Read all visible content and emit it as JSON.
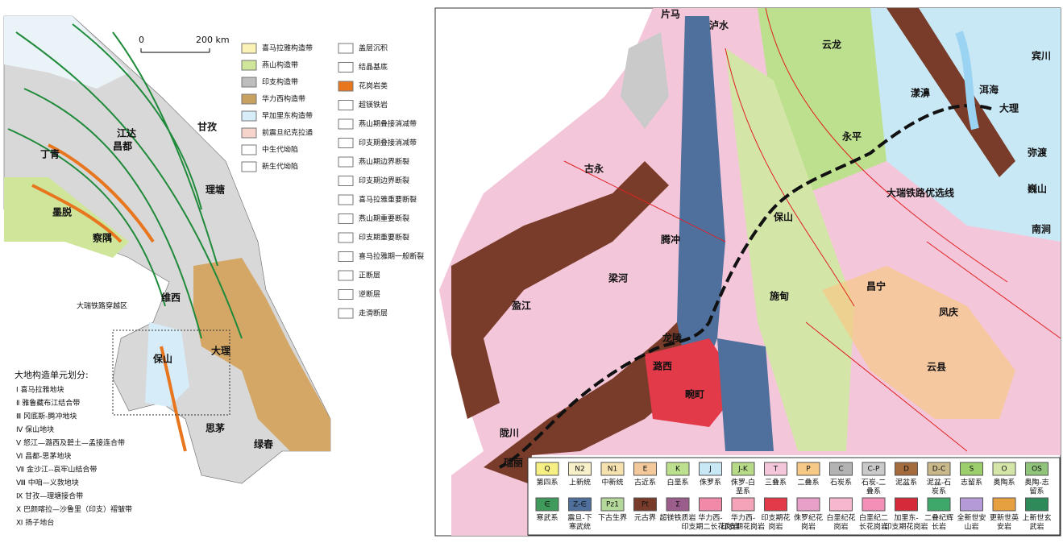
{
  "scale": {
    "zero": "0",
    "label": "200 km"
  },
  "left_legend": {
    "belts": [
      {
        "label": "喜马拉雅构造带",
        "color": "#fbf3b5"
      },
      {
        "label": "燕山构造带",
        "color": "#cfe59a"
      },
      {
        "label": "印支构造带",
        "color": "#bdbdbd"
      },
      {
        "label": "华力西构造带",
        "color": "#c8a060"
      },
      {
        "label": "早加里东构造带",
        "color": "#d6ecf8"
      },
      {
        "label": "前震旦纪克拉通",
        "color": "#f6d4cc"
      },
      {
        "label": "中生代坳陷",
        "color": "#ffffff"
      },
      {
        "label": "新生代坳陷",
        "color": "#ffffff"
      }
    ],
    "symbols": [
      "盖层沉积",
      "结晶基底",
      "花岗岩类",
      "超镁铁岩",
      "燕山期叠接消减带",
      "印支期叠接消减带",
      "燕山期边界断裂",
      "印支期边界断裂",
      "喜马拉雅重要断裂",
      "燕山期重要断裂",
      "印支期重要断裂",
      "喜马拉雅期一般断裂",
      "正断层",
      "逆断层",
      "走滑断层"
    ]
  },
  "units": {
    "title": "大地构造单元划分:",
    "items": [
      "Ⅰ 喜马拉雅地块",
      "Ⅱ 雅鲁藏布江结合带",
      "Ⅲ 冈底斯-腾冲地块",
      "Ⅳ 保山地块",
      "Ⅴ 怒江—潞西及碧土—孟接连合带",
      "Ⅵ 昌都-思茅地块",
      "Ⅶ 金沙江--哀牢山结合带",
      "Ⅷ 中咱—义敦地块",
      "Ⅸ 甘孜—理塘接合带",
      "Ⅹ 巴颜喀拉—沙鲁里（印支）褶皱带",
      "Ⅺ 扬子地台"
    ]
  },
  "left_places": [
    "丁青",
    "江达",
    "昌都",
    "甘孜",
    "理塘",
    "墨脱",
    "察隅",
    "维西",
    "保山",
    "大理",
    "思茅",
    "绿春",
    "大瑞铁路穿越区"
  ],
  "right_places": [
    "片马",
    "泸水",
    "云龙",
    "漾濞",
    "大理",
    "宾川",
    "弥渡",
    "巍山",
    "南涧",
    "永平",
    "保山",
    "腾冲",
    "梁河",
    "盈江",
    "龙陵",
    "潞西",
    "畹町",
    "陇川",
    "瑞丽",
    "施甸",
    "昌宁",
    "凤庆",
    "云县",
    "古永",
    "洱海",
    "大瑞铁路优选线"
  ],
  "bottom_legend": [
    {
      "code": "Q",
      "label": "第四系",
      "color": "#f6ef84"
    },
    {
      "code": "N2",
      "label": "上新统",
      "color": "#f8f0c8"
    },
    {
      "code": "N1",
      "label": "中新统",
      "color": "#f6e2ae"
    },
    {
      "code": "E",
      "label": "古近系",
      "color": "#f3c99c"
    },
    {
      "code": "K",
      "label": "白垩系",
      "color": "#bde08e"
    },
    {
      "code": "J",
      "label": "侏罗系",
      "color": "#c8e8f6"
    },
    {
      "code": "J-K",
      "label": "侏罗-白垩系",
      "color": "#b6da88"
    },
    {
      "code": "T",
      "label": "三叠系",
      "color": "#f4c6da"
    },
    {
      "code": "P",
      "label": "二叠系",
      "color": "#f7c987"
    },
    {
      "code": "C",
      "label": "石炭系",
      "color": "#b3b3b3"
    },
    {
      "code": "C-P",
      "label": "石炭-二叠系",
      "color": "#cacaca"
    },
    {
      "code": "D",
      "label": "泥盆系",
      "color": "#a46c3d"
    },
    {
      "code": "D-C",
      "label": "泥盆-石炭系",
      "color": "#c9b98a"
    },
    {
      "code": "S",
      "label": "志留系",
      "color": "#9ccf6c"
    },
    {
      "code": "O",
      "label": "奥陶系",
      "color": "#d4e5a8"
    },
    {
      "code": "OS",
      "label": "奥陶-志留系",
      "color": "#8fc47a"
    },
    {
      "code": "∈",
      "label": "寒武系",
      "color": "#3f9a5b"
    },
    {
      "code": "Z-∈",
      "label": "震旦-下寒武统",
      "color": "#4f6f9c"
    },
    {
      "code": "Pz1",
      "label": "下古生界",
      "color": "#b5d89b"
    },
    {
      "code": "Pt",
      "label": "元古界",
      "color": "#7a3c2a"
    },
    {
      "code": "Σ",
      "label": "超镁铁质岩",
      "color": "#9b5d8c"
    },
    {
      "label": "华力西-印支期二长花岗岩",
      "color": "#f08aa8"
    },
    {
      "label": "华力西-印支期花岗岩",
      "color": "#f4a3b8"
    },
    {
      "label": "印支期花岗岩",
      "color": "#e33a4a"
    },
    {
      "label": "侏罗纪花岗岩",
      "color": "#e9a0c8"
    },
    {
      "label": "白垩纪花岗岩",
      "color": "#f7b7cf"
    },
    {
      "label": "白垩纪二长花岗岩",
      "color": "#f48fb8"
    },
    {
      "label": "加里东-印支期花岗岩",
      "color": "#d42a3a"
    },
    {
      "label": "二叠纪辉长岩",
      "color": "#3ea86a"
    },
    {
      "label": "全新世安山岩",
      "color": "#b49ad6"
    },
    {
      "label": "更新世英安岩",
      "color": "#e6a040"
    },
    {
      "label": "上新世玄武岩",
      "color": "#2f8a5a"
    }
  ]
}
